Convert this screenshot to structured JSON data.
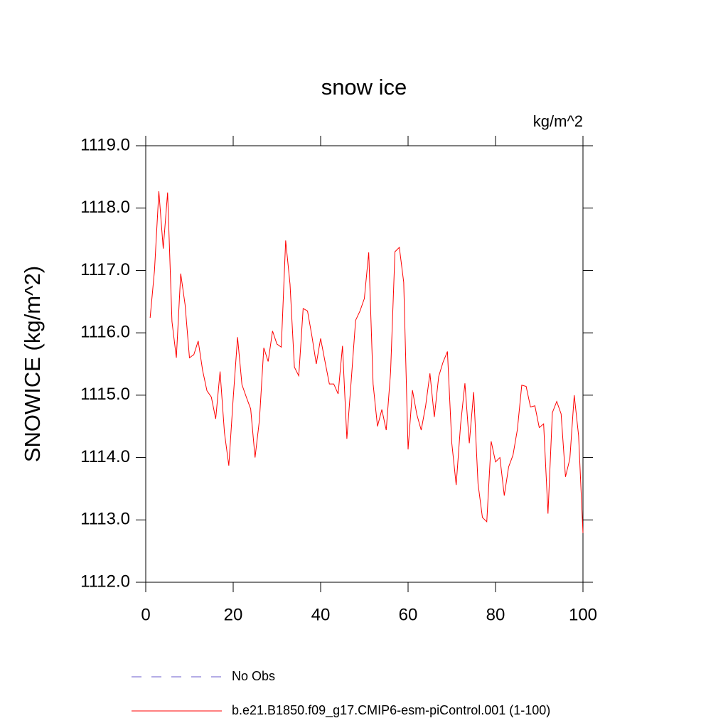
{
  "chart_data": {
    "type": "line",
    "title": "snow ice",
    "units": "kg/m^2",
    "ylabel": "SNOWICE  (kg/m^2)",
    "x": [
      1,
      2,
      3,
      4,
      5,
      6,
      7,
      8,
      9,
      10,
      11,
      12,
      13,
      14,
      15,
      16,
      17,
      18,
      19,
      20,
      21,
      22,
      23,
      24,
      25,
      26,
      27,
      28,
      29,
      30,
      31,
      32,
      33,
      34,
      35,
      36,
      37,
      38,
      39,
      40,
      41,
      42,
      43,
      44,
      45,
      46,
      47,
      48,
      49,
      50,
      51,
      52,
      53,
      54,
      55,
      56,
      57,
      58,
      59,
      60,
      61,
      62,
      63,
      64,
      65,
      66,
      67,
      68,
      69,
      70,
      71,
      72,
      73,
      74,
      75,
      76,
      77,
      78,
      79,
      80,
      81,
      82,
      83,
      84,
      85,
      86,
      87,
      88,
      89,
      90,
      91,
      92,
      93,
      94,
      95,
      96,
      97,
      98,
      99,
      100
    ],
    "series": [
      {
        "name": "No Obs",
        "color": "#6a5acd",
        "dashed": true
      },
      {
        "name": "b.e21.B1850.f09_g17.CMIP6-esm-piControl.001 (1-100)",
        "color": "#ff0000",
        "values": [
          1116.24,
          1117.0,
          1118.27,
          1117.35,
          1118.25,
          1116.18,
          1115.6,
          1116.95,
          1116.45,
          1115.6,
          1115.65,
          1115.87,
          1115.4,
          1115.07,
          1114.97,
          1114.62,
          1115.38,
          1114.4,
          1113.87,
          1114.95,
          1115.93,
          1115.17,
          1114.97,
          1114.78,
          1114.0,
          1114.6,
          1115.76,
          1115.54,
          1116.03,
          1115.82,
          1115.77,
          1117.48,
          1116.78,
          1115.45,
          1115.31,
          1116.39,
          1116.35,
          1115.95,
          1115.5,
          1115.91,
          1115.54,
          1115.18,
          1115.18,
          1115.02,
          1115.79,
          1114.3,
          1115.24,
          1116.2,
          1116.35,
          1116.55,
          1117.29,
          1115.18,
          1114.5,
          1114.77,
          1114.44,
          1115.37,
          1117.3,
          1117.37,
          1116.81,
          1114.13,
          1115.08,
          1114.69,
          1114.44,
          1114.82,
          1115.35,
          1114.65,
          1115.3,
          1115.53,
          1115.7,
          1114.23,
          1113.56,
          1114.52,
          1115.19,
          1114.23,
          1115.05,
          1113.58,
          1113.04,
          1112.97,
          1114.26,
          1113.93,
          1114.0,
          1113.39,
          1113.85,
          1114.04,
          1114.45,
          1115.16,
          1115.14,
          1114.81,
          1114.83,
          1114.48,
          1114.54,
          1113.1,
          1114.72,
          1114.9,
          1114.7,
          1113.69,
          1113.98,
          1115.0,
          1114.35,
          1112.79
        ]
      }
    ],
    "xlim": [
      0,
      100
    ],
    "xticks": [
      0,
      20,
      40,
      60,
      80,
      100
    ],
    "ylim": [
      1112,
      1119
    ],
    "yticks": [
      {
        "value": 1112,
        "label": "1112.0"
      },
      {
        "value": 1113,
        "label": "1113.0"
      },
      {
        "value": 1114,
        "label": "1114.0"
      },
      {
        "value": 1115,
        "label": "1115.0"
      },
      {
        "value": 1116,
        "label": "1116.0"
      },
      {
        "value": 1117,
        "label": "1117.0"
      },
      {
        "value": 1118,
        "label": "1118.0"
      },
      {
        "value": 1119,
        "label": "1119.0"
      }
    ],
    "grid": false
  }
}
